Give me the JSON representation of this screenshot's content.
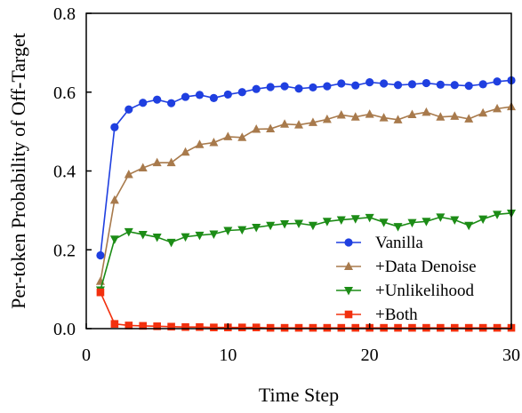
{
  "chart_data": {
    "type": "line",
    "title": "",
    "xlabel": "Time Step",
    "ylabel": "Per-token Probability of Off-Target",
    "xlim": [
      0,
      30
    ],
    "ylim": [
      0.0,
      0.8
    ],
    "x_ticks": [
      0,
      10,
      20,
      30
    ],
    "y_ticks": [
      0.0,
      0.2,
      0.4,
      0.6,
      0.8
    ],
    "x_tick_labels": [
      "0",
      "10",
      "20",
      "30"
    ],
    "y_tick_labels": [
      "0.0",
      "0.2",
      "0.4",
      "0.6",
      "0.8"
    ],
    "grid": false,
    "legend_position": "lower-right",
    "x": [
      1,
      2,
      3,
      4,
      5,
      6,
      7,
      8,
      9,
      10,
      11,
      12,
      13,
      14,
      15,
      16,
      17,
      18,
      19,
      20,
      21,
      22,
      23,
      24,
      25,
      26,
      27,
      28,
      29,
      30
    ],
    "series": [
      {
        "name": "Vanilla",
        "color": "#1f3fe0",
        "marker": "circle",
        "values": [
          0.186,
          0.511,
          0.556,
          0.573,
          0.581,
          0.572,
          0.588,
          0.593,
          0.585,
          0.594,
          0.6,
          0.608,
          0.613,
          0.615,
          0.609,
          0.612,
          0.615,
          0.622,
          0.617,
          0.625,
          0.622,
          0.618,
          0.62,
          0.623,
          0.619,
          0.618,
          0.616,
          0.62,
          0.627,
          0.63
        ]
      },
      {
        "name": "+Data Denoise",
        "color": "#a87a4c",
        "marker": "triangle-up",
        "values": [
          0.12,
          0.326,
          0.391,
          0.408,
          0.421,
          0.421,
          0.448,
          0.467,
          0.472,
          0.487,
          0.485,
          0.506,
          0.507,
          0.519,
          0.517,
          0.523,
          0.531,
          0.542,
          0.537,
          0.544,
          0.535,
          0.53,
          0.543,
          0.549,
          0.537,
          0.539,
          0.532,
          0.547,
          0.558,
          0.563
        ]
      },
      {
        "name": "+Unlikelihood",
        "color": "#1c8c16",
        "marker": "triangle-down",
        "values": [
          0.098,
          0.227,
          0.246,
          0.239,
          0.232,
          0.219,
          0.233,
          0.237,
          0.24,
          0.249,
          0.251,
          0.257,
          0.262,
          0.266,
          0.267,
          0.262,
          0.272,
          0.276,
          0.279,
          0.282,
          0.27,
          0.259,
          0.269,
          0.272,
          0.283,
          0.276,
          0.262,
          0.278,
          0.29,
          0.293
        ]
      },
      {
        "name": "+Both",
        "color": "#f2300e",
        "marker": "square",
        "values": [
          0.092,
          0.012,
          0.008,
          0.007,
          0.006,
          0.005,
          0.004,
          0.004,
          0.003,
          0.003,
          0.003,
          0.003,
          0.002,
          0.002,
          0.002,
          0.002,
          0.002,
          0.002,
          0.002,
          0.002,
          0.002,
          0.002,
          0.002,
          0.002,
          0.002,
          0.002,
          0.002,
          0.002,
          0.002,
          0.002
        ]
      }
    ]
  }
}
